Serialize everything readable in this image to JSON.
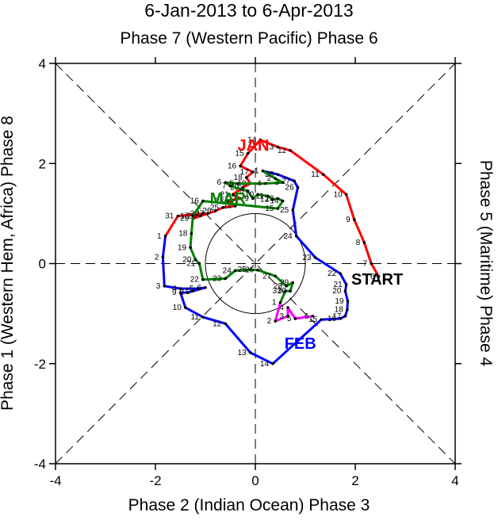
{
  "chart_data": {
    "type": "line",
    "title": "6-Jan-2013 to 6-Apr-2013",
    "subtitle": "Phase 7 (Western Pacific) Phase 6",
    "xlabel": "Phase 2 (Indian Ocean) Phase 3",
    "ylabel_left": "Phase 1 (Western Hem, Africa) Phase 8",
    "ylabel_right": "Phase 5 (Maritime) Phase 4",
    "xlim": [
      -4,
      4
    ],
    "ylim": [
      -4,
      4
    ],
    "x_ticks": [
      -4,
      -2,
      0,
      2,
      4
    ],
    "y_ticks": [
      -4,
      -2,
      0,
      2,
      4
    ],
    "x_tick_labels": [
      "-4",
      "-2",
      "0",
      "2",
      "4"
    ],
    "y_tick_labels": [
      "-4",
      "-2",
      "0",
      "2",
      "4"
    ],
    "center_circle_radius": 1,
    "start_label": "START",
    "start_point": [
      2.47,
      -0.26
    ],
    "series": [
      {
        "name": "JAN",
        "color": "#ff0000",
        "label_pos": [
          -0.04,
          2.26
        ],
        "points": [
          {
            "d": "6",
            "x": 2.47,
            "y": -0.26
          },
          {
            "d": "7",
            "x": 2.32,
            "y": 0.0
          },
          {
            "d": "8",
            "x": 2.18,
            "y": 0.42
          },
          {
            "d": "9",
            "x": 1.98,
            "y": 0.88
          },
          {
            "d": "10",
            "x": 1.82,
            "y": 1.38
          },
          {
            "d": "11",
            "x": 1.36,
            "y": 1.78
          },
          {
            "d": "12",
            "x": 0.7,
            "y": 2.26
          },
          {
            "d": "13",
            "x": 0.45,
            "y": 2.33
          },
          {
            "d": "14",
            "x": 0.1,
            "y": 2.47
          },
          {
            "d": "15",
            "x": -0.15,
            "y": 2.2
          },
          {
            "d": "16",
            "x": -0.3,
            "y": 1.95
          },
          {
            "d": "17",
            "x": -0.05,
            "y": 1.83
          },
          {
            "d": "18",
            "x": -0.18,
            "y": 1.72
          },
          {
            "d": "19",
            "x": -0.1,
            "y": 1.6
          },
          {
            "d": "20",
            "x": -0.25,
            "y": 1.52
          },
          {
            "d": "21",
            "x": -0.45,
            "y": 1.38
          },
          {
            "d": "22",
            "x": -0.3,
            "y": 1.3
          },
          {
            "d": "23",
            "x": -0.55,
            "y": 1.25
          },
          {
            "d": "24",
            "x": -0.4,
            "y": 1.15
          },
          {
            "d": "25",
            "x": -0.65,
            "y": 1.12
          },
          {
            "d": "26",
            "x": -0.8,
            "y": 1.05
          },
          {
            "d": "27",
            "x": -0.95,
            "y": 1.0
          },
          {
            "d": "28",
            "x": -1.1,
            "y": 0.95
          },
          {
            "d": "29",
            "x": -1.25,
            "y": 0.9
          },
          {
            "d": "30",
            "x": -1.05,
            "y": 1.0
          },
          {
            "d": "31",
            "x": -1.55,
            "y": 0.95
          }
        ]
      },
      {
        "name": "FEB",
        "color": "#0000ff",
        "label_pos": [
          0.9,
          -1.7
        ],
        "points": [
          {
            "d": "1",
            "x": -1.8,
            "y": 0.55
          },
          {
            "d": "2",
            "x": -1.85,
            "y": 0.13
          },
          {
            "d": "3",
            "x": -1.82,
            "y": -0.45
          },
          {
            "d": "4",
            "x": -1.5,
            "y": -0.5
          },
          {
            "d": "5",
            "x": -1.15,
            "y": -0.5
          },
          {
            "d": "6",
            "x": -1.0,
            "y": -0.48
          },
          {
            "d": "7",
            "x": -1.25,
            "y": -0.55
          },
          {
            "d": "8",
            "x": -1.35,
            "y": -0.58
          },
          {
            "d": "9",
            "x": -1.5,
            "y": -0.58
          },
          {
            "d": "10",
            "x": -1.4,
            "y": -0.88
          },
          {
            "d": "11",
            "x": -1.05,
            "y": -1.07
          },
          {
            "d": "12",
            "x": -0.6,
            "y": -1.2
          },
          {
            "d": "13",
            "x": -0.1,
            "y": -1.78
          },
          {
            "d": "14",
            "x": 0.35,
            "y": -2.0
          },
          {
            "d": "15",
            "x": 1.32,
            "y": -1.12
          },
          {
            "d": "16",
            "x": 1.7,
            "y": -1.1
          },
          {
            "d": "17",
            "x": 1.8,
            "y": -1.05
          },
          {
            "d": "18",
            "x": 1.84,
            "y": -0.92
          },
          {
            "d": "19",
            "x": 1.85,
            "y": -0.75
          },
          {
            "d": "20",
            "x": 1.8,
            "y": -0.55
          },
          {
            "d": "21",
            "x": 1.82,
            "y": -0.42
          },
          {
            "d": "22",
            "x": 1.7,
            "y": -0.2
          },
          {
            "d": "23",
            "x": 1.2,
            "y": 0.12
          },
          {
            "d": "24",
            "x": 0.82,
            "y": 0.55
          },
          {
            "d": "25",
            "x": 0.75,
            "y": 1.07
          },
          {
            "d": "26",
            "x": 0.85,
            "y": 1.52
          },
          {
            "d": "27",
            "x": 0.78,
            "y": 1.65
          },
          {
            "d": "28",
            "x": 0.45,
            "y": 1.78
          }
        ]
      },
      {
        "name": "MAR",
        "color": "#008000",
        "label_pos": [
          -0.55,
          1.2
        ],
        "points": [
          {
            "d": "1",
            "x": 0.15,
            "y": 1.85
          },
          {
            "d": "2",
            "x": 0.4,
            "y": 1.7
          },
          {
            "d": "3",
            "x": 0.55,
            "y": 1.62
          },
          {
            "d": "4",
            "x": 0.2,
            "y": 1.6
          },
          {
            "d": "5",
            "x": -0.35,
            "y": 1.6
          },
          {
            "d": "6",
            "x": -0.6,
            "y": 1.62
          },
          {
            "d": "7",
            "x": -0.5,
            "y": 1.55
          },
          {
            "d": "8",
            "x": -0.15,
            "y": 1.45
          },
          {
            "d": "9",
            "x": -0.05,
            "y": 1.3
          },
          {
            "d": "10",
            "x": 0.05,
            "y": 1.38
          },
          {
            "d": "11",
            "x": 0.25,
            "y": 1.35
          },
          {
            "d": "12",
            "x": 0.35,
            "y": 1.28
          },
          {
            "d": "13",
            "x": 0.45,
            "y": 1.3
          },
          {
            "d": "14",
            "x": 0.55,
            "y": 1.25
          },
          {
            "d": "15",
            "x": 0.45,
            "y": 1.1
          },
          {
            "d": "16",
            "x": -1.05,
            "y": 1.25
          },
          {
            "d": "17",
            "x": -1.25,
            "y": 0.95
          },
          {
            "d": "18",
            "x": -1.28,
            "y": 0.6
          },
          {
            "d": "19",
            "x": -1.3,
            "y": 0.32
          },
          {
            "d": "20",
            "x": -1.2,
            "y": 0.08
          },
          {
            "d": "21",
            "x": -1.12,
            "y": 0.0
          },
          {
            "d": "22",
            "x": -1.05,
            "y": -0.32
          },
          {
            "d": "23",
            "x": -0.6,
            "y": -0.3
          },
          {
            "d": "24",
            "x": -0.4,
            "y": -0.14
          },
          {
            "d": "25",
            "x": -0.1,
            "y": -0.12
          },
          {
            "d": "26",
            "x": 0.05,
            "y": -0.13
          },
          {
            "d": "27",
            "x": 0.4,
            "y": -0.25
          },
          {
            "d": "28",
            "x": 0.62,
            "y": -0.45
          },
          {
            "d": "29",
            "x": 0.75,
            "y": -0.38
          },
          {
            "d": "30",
            "x": 0.7,
            "y": -0.55
          },
          {
            "d": "31",
            "x": 0.6,
            "y": -0.55
          }
        ]
      },
      {
        "name": "APR",
        "color": "#ff00ff",
        "points": [
          {
            "d": "1",
            "x": 0.5,
            "y": -0.78
          },
          {
            "d": "2",
            "x": 0.4,
            "y": -1.15
          },
          {
            "d": "3",
            "x": 0.65,
            "y": -1.05
          },
          {
            "d": "4",
            "x": 0.65,
            "y": -0.88
          },
          {
            "d": "5",
            "x": 0.8,
            "y": -1.1
          },
          {
            "d": "6",
            "x": 1.15,
            "y": -1.05
          }
        ]
      }
    ]
  }
}
